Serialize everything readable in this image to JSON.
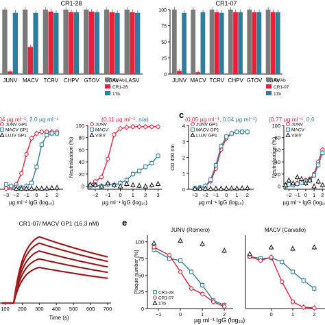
{
  "figure": {
    "panel_e_letter": "e",
    "panel_c_letter": "c"
  },
  "colors": {
    "noab": "#7a7a7a",
    "red": "#e8203a",
    "blue": "#2e7d9c",
    "sensor_line": "#6b0f12",
    "black": "#111111"
  },
  "chart_data": [
    {
      "id": "bar-cr128",
      "type": "bar",
      "title": "CR1-28",
      "categories": [
        "JUNV",
        "MACV",
        "TCRV",
        "CHPV",
        "GTOV",
        "SBAV",
        "LASV"
      ],
      "series": [
        {
          "name": "No Ab",
          "values": [
            100,
            100,
            100,
            100,
            100,
            100,
            100
          ]
        },
        {
          "name": "CR1-28",
          "values": [
            4,
            42,
            97,
            96,
            97,
            96,
            96
          ]
        },
        {
          "name": "17b",
          "values": [
            95,
            95,
            95,
            96,
            96,
            95,
            95
          ]
        }
      ],
      "ylim": [
        0,
        100
      ]
    },
    {
      "id": "bar-cr107",
      "type": "bar",
      "title": "CR1-07",
      "categories": [
        "JUNV",
        "MACV",
        "TCRV",
        "CHPV",
        "GTOV",
        "SBAV"
      ],
      "series": [
        {
          "name": "No Ab",
          "values": [
            100,
            100,
            100,
            100,
            100,
            100
          ]
        },
        {
          "name": "CR1-07",
          "values": [
            5,
            3,
            96,
            96,
            96,
            96
          ]
        },
        {
          "name": "17b",
          "values": [
            95,
            96,
            95,
            96,
            96,
            96
          ]
        }
      ],
      "ylim": [
        0,
        100
      ],
      "yticks": [
        "0",
        "25",
        "50",
        "75",
        "100"
      ]
    },
    {
      "id": "elisa-cr128",
      "type": "line",
      "title_parts": [
        "04 µg ml⁻¹, ",
        "2.0 µg ml⁻¹"
      ],
      "xlabel": "µg ml⁻² IgG (log₁₀)",
      "xticks": [
        "−3",
        "−2",
        "−1",
        "0",
        "1",
        "2"
      ],
      "xlim": [
        -3.6,
        2.6
      ],
      "ylim": [
        0,
        4
      ],
      "series": [
        {
          "name": "JUNV GP1",
          "x": [
            -3,
            -2.5,
            -2,
            -1.5,
            -1,
            -0.5,
            0,
            0.5,
            1,
            1.5,
            2
          ],
          "y": [
            0.05,
            0.1,
            0.3,
            1.0,
            2.2,
            3.2,
            3.5,
            3.6,
            3.6,
            3.6,
            3.6
          ]
        },
        {
          "name": "MACV GP1",
          "x": [
            -3,
            -2.5,
            -2,
            -1.5,
            -1,
            -0.5,
            0,
            0.5,
            1,
            1.5,
            2
          ],
          "y": [
            0.3,
            0.2,
            0.15,
            0.1,
            0.2,
            0.4,
            1.4,
            2.8,
            3.4,
            3.5,
            3.5
          ]
        },
        {
          "name": "LUJV GP1",
          "x": [
            -2,
            -1.5,
            -1,
            -0.5,
            0,
            0.5,
            1,
            1.5,
            2
          ],
          "y": [
            0.05,
            0.05,
            0.05,
            0.05,
            0.06,
            0.05,
            0.06,
            0.08,
            0.1
          ]
        }
      ]
    },
    {
      "id": "neut-cr128",
      "type": "line",
      "title_parts": [
        "(0.11 µg ml⁻¹, ",
        "n/a)"
      ],
      "xlabel": "µg ml⁻¹ IgG (log₁₀)",
      "ylabel": "Neutralization (%)",
      "xticks": [
        "−2",
        "−1",
        "0",
        "1",
        "2",
        "3"
      ],
      "yticks": [
        "0",
        "20",
        "40",
        "60",
        "80",
        "100"
      ],
      "xlim": [
        -2.6,
        3.3
      ],
      "ylim": [
        -5,
        100
      ],
      "series": [
        {
          "name": "JUNV",
          "x": [
            -2.4,
            -2,
            -1.5,
            -1,
            -0.5,
            0,
            0.5,
            1,
            1.5,
            2,
            2.5,
            3
          ],
          "y": [
            2,
            8,
            15,
            45,
            85,
            95,
            97,
            98,
            98,
            98,
            98,
            98
          ]
        },
        {
          "name": "MACV",
          "x": [
            -2.4,
            -2,
            -1.5,
            -1,
            -0.5,
            0,
            0.5,
            1,
            1.5,
            2,
            2.5,
            3
          ],
          "y": [
            0,
            2,
            0,
            3,
            2,
            5,
            10,
            20,
            25,
            32,
            38,
            50
          ]
        },
        {
          "name": "VSIV",
          "x": [
            -2.4,
            -2,
            -1.5,
            -1,
            -0.5,
            0,
            0.5,
            1,
            1.5,
            2,
            2.5,
            3
          ],
          "y": [
            3,
            2,
            0,
            5,
            2,
            0,
            4,
            2,
            1,
            0,
            2,
            4
          ]
        }
      ]
    },
    {
      "id": "elisa-cr107",
      "type": "line",
      "title_parts": [
        "(0.05 µg ml⁻¹, ",
        "0.04 µg ml⁻¹)"
      ],
      "xlabel": "µg ml⁻¹ IgG (log₁₀)",
      "ylabel": "OD 450 nm",
      "xticks": [
        "−3",
        "−2",
        "−1",
        "0",
        "1",
        "2"
      ],
      "yticks": [
        "0",
        "1",
        "2",
        "3",
        "4"
      ],
      "xlim": [
        -3.6,
        2.6
      ],
      "ylim": [
        0,
        4
      ],
      "series": [
        {
          "name": "JUNV GP1",
          "x": [
            -3,
            -2.5,
            -2,
            -1.5,
            -1,
            -0.5,
            0,
            0.5,
            1,
            1.5,
            2
          ],
          "y": [
            0.05,
            0.1,
            0.2,
            0.5,
            1.3,
            2.5,
            3.2,
            3.5,
            3.6,
            3.6,
            3.6
          ]
        },
        {
          "name": "MACV GP1",
          "x": [
            -3,
            -2.5,
            -2,
            -1.5,
            -1,
            -0.5,
            0,
            0.5,
            1,
            1.5,
            2
          ],
          "y": [
            0.05,
            0.1,
            0.2,
            0.6,
            1.5,
            2.7,
            3.3,
            3.5,
            3.6,
            3.6,
            3.6
          ]
        },
        {
          "name": "LUJV GP1",
          "x": [
            -3,
            -2.5,
            -2,
            -1.5,
            -1,
            -0.5,
            0,
            0.5,
            1,
            1.5,
            2
          ],
          "y": [
            0.05,
            0.05,
            0.05,
            0.05,
            0.05,
            0.05,
            0.05,
            0.06,
            0.06,
            0.07,
            0.08
          ]
        }
      ]
    },
    {
      "id": "neut-cr107",
      "type": "line",
      "title_parts": [
        "(0.77 µg ml⁻¹, ",
        "0.6"
      ],
      "xlabel": "µg ml⁻¹ IgG (log₁₀",
      "ylabel": "Neutralization (%)",
      "xticks": [
        "−2",
        "−1",
        "0",
        "1",
        "2"
      ],
      "yticks": [
        "0",
        "20",
        "40",
        "60",
        "80",
        "100"
      ],
      "xlim": [
        -2.6,
        2.3
      ],
      "ylim": [
        -5,
        100
      ],
      "series": [
        {
          "name": "JUNV",
          "x": [
            -2.4,
            -2,
            -1.5,
            -1,
            -0.5,
            0,
            0.5,
            1,
            1.5,
            2
          ],
          "y": [
            2,
            5,
            3,
            5,
            8,
            10,
            12,
            20,
            40,
            60
          ]
        },
        {
          "name": "MACV",
          "x": [
            -2.4,
            -2,
            -1.5,
            -1,
            -0.5,
            0,
            0.5,
            1,
            1.5,
            2
          ],
          "y": [
            0,
            3,
            2,
            4,
            6,
            8,
            10,
            18,
            35,
            55
          ]
        },
        {
          "name": "VSIV",
          "x": [
            -2.4,
            -2,
            -1.5,
            -1,
            -0.5,
            0,
            0.5,
            1,
            1.5,
            2
          ],
          "y": [
            2,
            10,
            5,
            15,
            12,
            5,
            10,
            0,
            8,
            2
          ]
        }
      ]
    },
    {
      "id": "spr",
      "type": "line",
      "title": "CR1-07/ MACV GP1 (16.3 nM)",
      "xlabel": "Time (s)",
      "xticks": [
        "100",
        "200",
        "300",
        "400",
        "500",
        "600",
        "700"
      ],
      "xlim": [
        70,
        720
      ],
      "ylim": [
        0,
        1
      ],
      "association_start": 150,
      "association_end": 300,
      "curve_maxima": [
        0.93,
        0.84,
        0.73,
        0.62,
        0.5
      ]
    },
    {
      "id": "plaque-junv",
      "type": "line",
      "title": "JUNV (Romero)",
      "ylabel": "Plaque number (%)",
      "yticks": [
        "0",
        "25",
        "50",
        "75",
        "100"
      ],
      "xticks": [
        "−1",
        "0",
        "1",
        "2"
      ],
      "xlim": [
        -1.5,
        2.4
      ],
      "ylim": [
        0,
        110
      ],
      "series": [
        {
          "name": "CR1-28",
          "x": [
            -1.2,
            -0.5,
            0,
            0.5,
            1,
            1.5,
            2
          ],
          "y": [
            88,
            75,
            72,
            55,
            35,
            12,
            5
          ]
        },
        {
          "name": "CR1-07",
          "x": [
            -1.2,
            -0.5,
            0,
            0.5,
            1,
            1.5,
            2
          ],
          "y": [
            92,
            80,
            55,
            30,
            22,
            10,
            3
          ]
        },
        {
          "name": "17b",
          "x": [
            -1.2,
            0,
            1,
            2
          ],
          "y": [
            98,
            102,
            97,
            87
          ]
        }
      ]
    },
    {
      "id": "plaque-macv",
      "type": "line",
      "title": "MACV (Carvallo)",
      "xticks": [
        "0",
        "1",
        "2"
      ],
      "xlim": [
        -1.2,
        2.5
      ],
      "ylim": [
        0,
        110
      ],
      "series": [
        {
          "name": "CR1-28",
          "x": [
            -1,
            -0.5,
            0,
            0.5,
            1,
            1.5,
            2
          ],
          "y": [
            78,
            75,
            76,
            70,
            55,
            42,
            30
          ]
        },
        {
          "name": "CR1-07",
          "x": [
            -1,
            -0.5,
            0,
            0.5,
            1,
            1.5,
            2
          ],
          "y": [
            78,
            72,
            77,
            40,
            10,
            2,
            1
          ]
        },
        {
          "name": "17b",
          "x": [
            -1,
            0,
            1,
            2
          ],
          "y": [
            82,
            92,
            90,
            92
          ]
        }
      ]
    }
  ],
  "shared_xlabel_e": "µg ml⁻¹ IgG (log₁₀)"
}
